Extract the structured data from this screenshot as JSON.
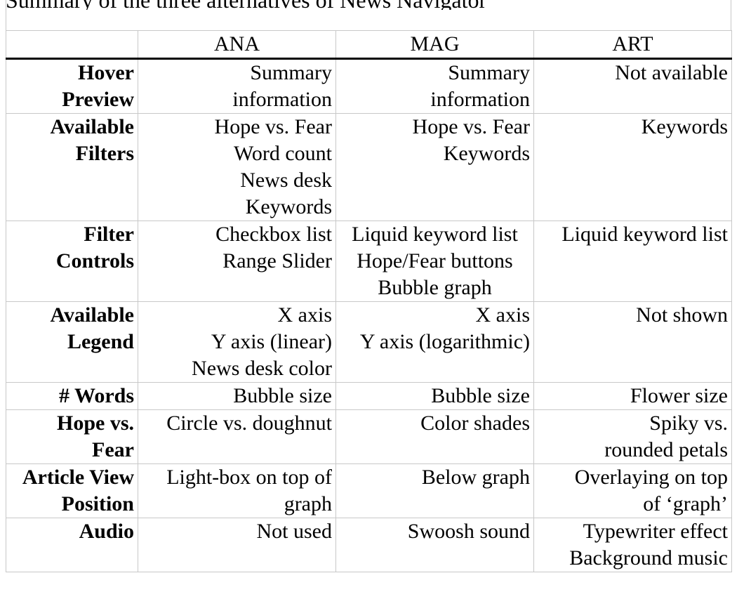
{
  "caption": "Summary of the three alternatives of News Navigator",
  "table": {
    "header_corner": "",
    "columns": [
      "ANA",
      "MAG",
      "ART"
    ],
    "rows": [
      {
        "label": [
          "Hover",
          "Preview"
        ],
        "cells": [
          [
            "Summary",
            "information"
          ],
          [
            "Summary",
            "information"
          ],
          [
            "Not available"
          ]
        ]
      },
      {
        "label": [
          "Available",
          "Filters"
        ],
        "cells": [
          [
            "Hope vs. Fear",
            "Word count",
            "News desk",
            "Keywords"
          ],
          [
            "Hope vs. Fear",
            "Keywords"
          ],
          [
            "Keywords"
          ]
        ]
      },
      {
        "label": [
          "Filter",
          "Controls"
        ],
        "cells": [
          [
            "Checkbox list",
            "Range Slider"
          ],
          [
            "Liquid keyword list",
            "Hope/Fear buttons",
            "Bubble graph"
          ],
          [
            "Liquid keyword list"
          ]
        ]
      },
      {
        "label": [
          "Available",
          "Legend"
        ],
        "cells": [
          [
            "X axis",
            "Y axis (linear)",
            "News desk color"
          ],
          [
            "X axis",
            "Y axis (logarithmic)"
          ],
          [
            "Not shown"
          ]
        ]
      },
      {
        "label": [
          "# Words"
        ],
        "cells": [
          [
            "Bubble size"
          ],
          [
            "Bubble size"
          ],
          [
            "Flower size"
          ]
        ]
      },
      {
        "label": [
          "Hope vs.",
          "Fear"
        ],
        "cells": [
          [
            "Circle vs. doughnut"
          ],
          [
            "Color shades"
          ],
          [
            "Spiky vs.",
            "rounded petals"
          ]
        ]
      },
      {
        "label": [
          "Article View",
          "Position"
        ],
        "cells": [
          [
            "Light-box on top of",
            "graph"
          ],
          [
            "Below graph"
          ],
          [
            "Overlaying on top",
            "of ‘graph’"
          ]
        ]
      },
      {
        "label": [
          "Audio"
        ],
        "cells": [
          [
            "Not used"
          ],
          [
            "Swoosh sound"
          ],
          [
            "Typewriter effect",
            "Background music"
          ]
        ]
      }
    ]
  }
}
